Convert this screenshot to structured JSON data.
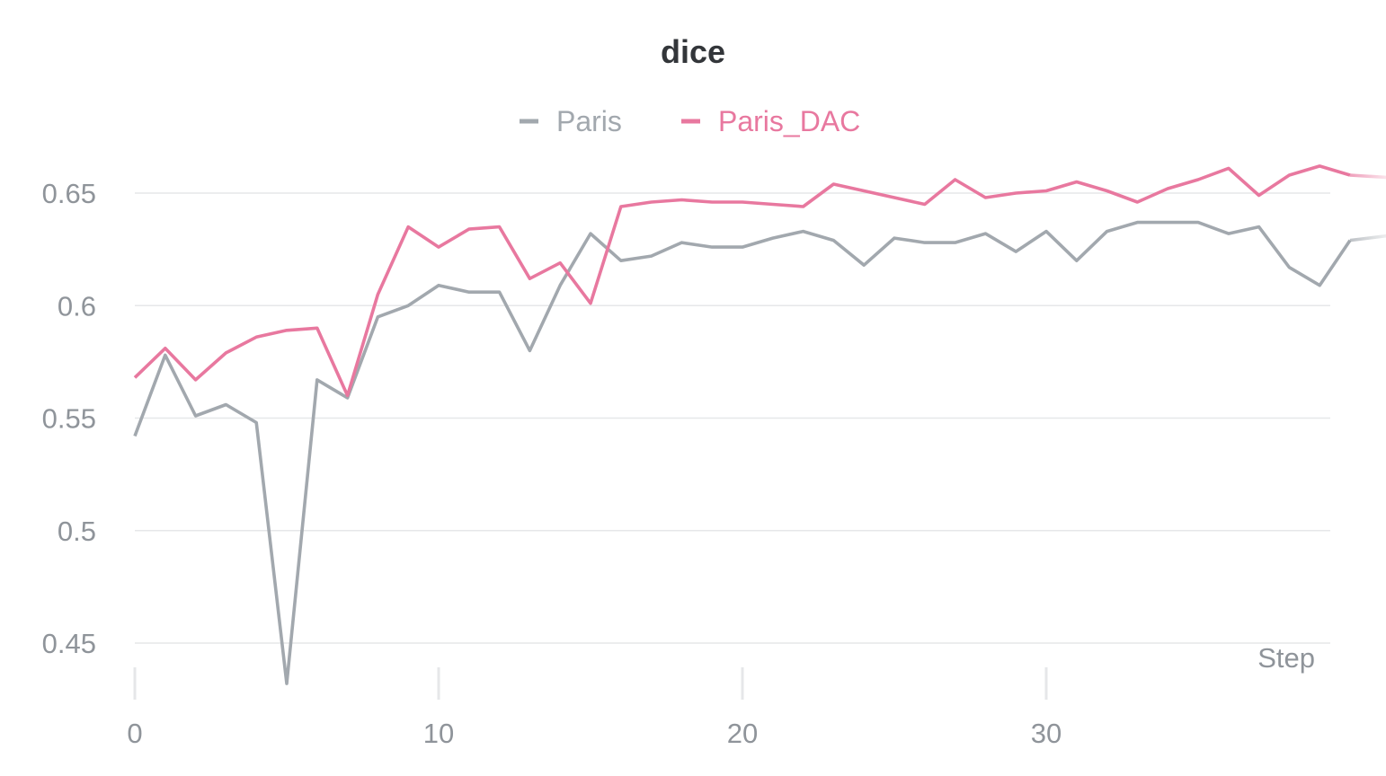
{
  "chart_data": {
    "type": "line",
    "title": "dice",
    "xlabel": "Step",
    "ylabel": "",
    "xlim": [
      0,
      41.2
    ],
    "ylim": [
      0.43,
      0.675
    ],
    "x_ticks": [
      0,
      10,
      20,
      30
    ],
    "y_ticks": [
      0.45,
      0.5,
      0.55,
      0.6,
      0.65
    ],
    "y_tick_labels": [
      "0.45",
      "0.5",
      "0.55",
      "0.6",
      "0.65"
    ],
    "grid": true,
    "legend_position": "top-center",
    "series": [
      {
        "name": "Paris",
        "color": "#a2a8ae",
        "x": [
          0,
          1,
          2,
          3,
          4,
          5,
          6,
          7,
          8,
          9,
          10,
          11,
          12,
          13,
          14,
          15,
          16,
          17,
          18,
          19,
          20,
          21,
          22,
          23,
          24,
          25,
          26,
          27,
          28,
          29,
          30,
          31,
          32,
          33,
          34,
          35,
          36,
          37,
          38,
          39,
          40,
          41.2
        ],
        "y": [
          0.542,
          0.578,
          0.551,
          0.556,
          0.548,
          0.432,
          0.567,
          0.559,
          0.595,
          0.6,
          0.609,
          0.606,
          0.606,
          0.58,
          0.609,
          0.632,
          0.62,
          0.622,
          0.628,
          0.626,
          0.626,
          0.63,
          0.633,
          0.629,
          0.618,
          0.63,
          0.628,
          0.628,
          0.632,
          0.624,
          0.633,
          0.62,
          0.633,
          0.637,
          0.637,
          0.637,
          0.632,
          0.635,
          0.617,
          0.609,
          0.629,
          0.631
        ]
      },
      {
        "name": "Paris_DAC",
        "color": "#e8789f",
        "x": [
          0,
          1,
          2,
          3,
          4,
          5,
          6,
          7,
          8,
          9,
          10,
          11,
          12,
          13,
          14,
          15,
          16,
          17,
          18,
          19,
          20,
          21,
          22,
          23,
          24,
          25,
          26,
          27,
          28,
          29,
          30,
          31,
          32,
          33,
          34,
          35,
          36,
          37,
          38,
          39,
          40,
          41.2
        ],
        "y": [
          0.568,
          0.581,
          0.567,
          0.579,
          0.586,
          0.589,
          0.59,
          0.56,
          0.605,
          0.635,
          0.626,
          0.634,
          0.635,
          0.612,
          0.619,
          0.601,
          0.644,
          0.646,
          0.647,
          0.646,
          0.646,
          0.645,
          0.644,
          0.654,
          0.651,
          0.648,
          0.645,
          0.656,
          0.648,
          0.65,
          0.651,
          0.655,
          0.651,
          0.646,
          0.652,
          0.656,
          0.661,
          0.649,
          0.658,
          0.662,
          0.658,
          0.657
        ]
      }
    ]
  }
}
